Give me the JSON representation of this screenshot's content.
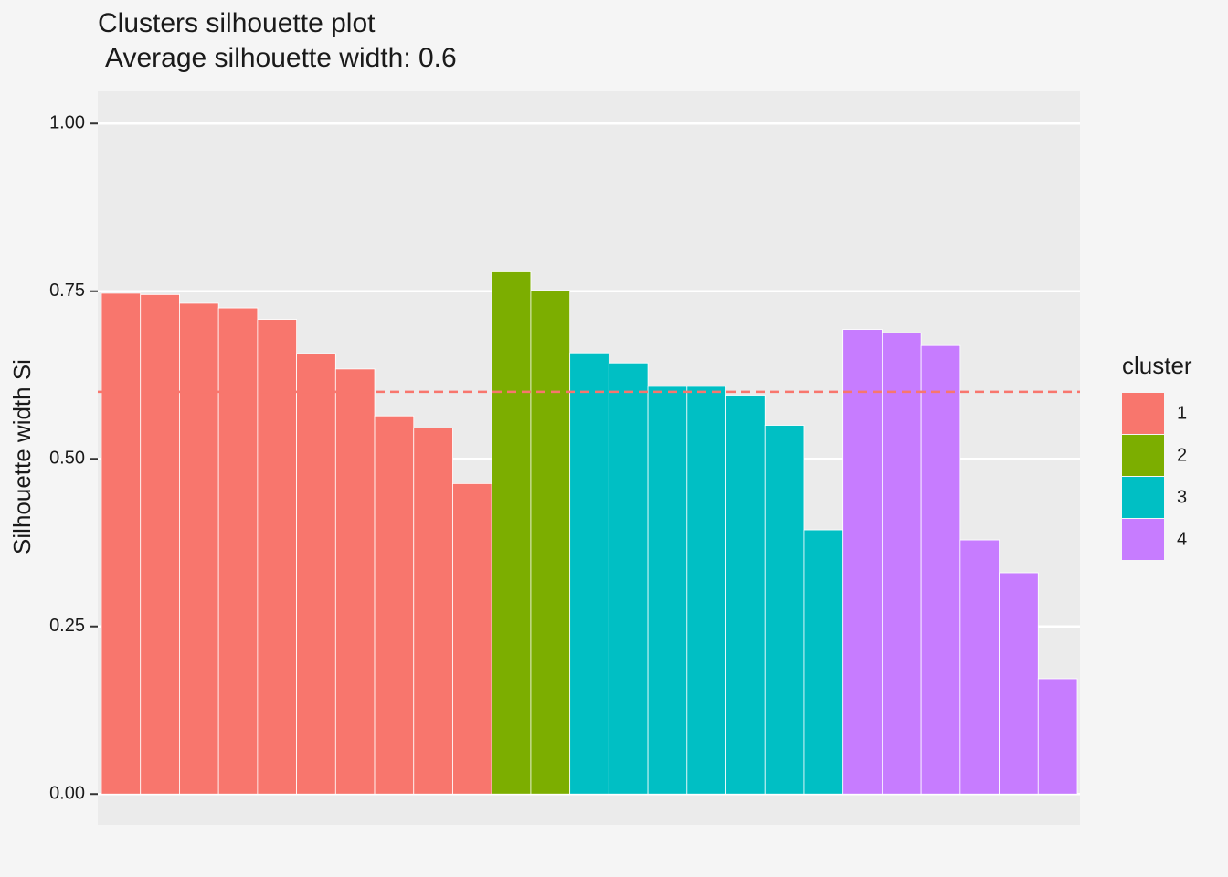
{
  "chart_data": {
    "type": "bar",
    "title": "Clusters silhouette plot",
    "subtitle": "Average silhouette width: 0.6",
    "y_label": "Silhouette width Si",
    "legend_title": "cluster",
    "legend_position": "right",
    "categories": [
      null,
      null,
      null,
      null,
      null,
      null,
      null,
      null,
      null,
      null,
      null,
      null,
      null,
      null,
      null,
      null,
      null,
      null,
      null,
      null,
      null,
      null,
      null,
      null,
      null
    ],
    "series": [
      {
        "name": "1",
        "color": "#f8766d",
        "values": [
          0.747,
          0.745,
          0.732,
          0.725,
          0.708,
          0.657,
          0.634,
          0.564,
          0.546,
          0.463,
          null,
          null,
          null,
          null,
          null,
          null,
          null,
          null,
          null,
          null,
          null,
          null,
          null,
          null,
          null
        ]
      },
      {
        "name": "2",
        "color": "#7cae00",
        "values": [
          null,
          null,
          null,
          null,
          null,
          null,
          null,
          null,
          null,
          null,
          0.779,
          0.751,
          null,
          null,
          null,
          null,
          null,
          null,
          null,
          null,
          null,
          null,
          null,
          null,
          null
        ]
      },
      {
        "name": "3",
        "color": "#00bfc4",
        "values": [
          null,
          null,
          null,
          null,
          null,
          null,
          null,
          null,
          null,
          null,
          null,
          null,
          0.658,
          0.643,
          0.608,
          0.608,
          0.595,
          0.55,
          0.394,
          null,
          null,
          null,
          null,
          null,
          null
        ]
      },
      {
        "name": "4",
        "color": "#c77cff",
        "values": [
          null,
          null,
          null,
          null,
          null,
          null,
          null,
          null,
          null,
          null,
          null,
          null,
          null,
          null,
          null,
          null,
          null,
          null,
          null,
          0.693,
          0.688,
          0.669,
          0.379,
          0.33,
          0.172
        ]
      }
    ],
    "reference_line": 0.6,
    "reference_line_color": "#f8766d",
    "ylim": [
      -0.046,
      1.048
    ],
    "yticks": [
      {
        "value": 0,
        "label": "0.00"
      },
      {
        "value": 0.25,
        "label": "0.25"
      },
      {
        "value": 0.5,
        "label": "0.50"
      },
      {
        "value": 0.75,
        "label": "0.75"
      },
      {
        "value": 1,
        "label": "1.00"
      }
    ],
    "grid": true
  }
}
